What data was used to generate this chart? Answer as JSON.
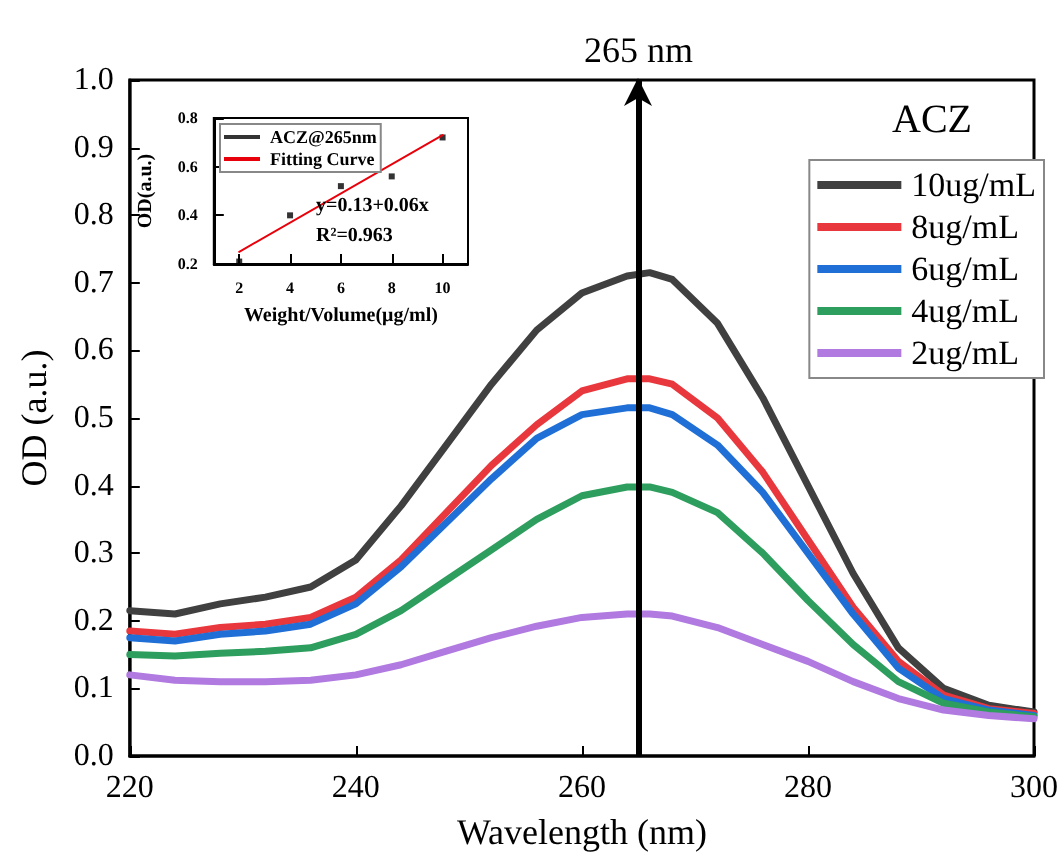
{
  "chart_data": [
    {
      "type": "line",
      "xlabel": "Wavelength (nm)",
      "ylabel": "OD (a.u.)",
      "legend_title": "ACZ",
      "legend": "top right",
      "grid": false,
      "marker": "none",
      "x": [
        220,
        224,
        228,
        232,
        236,
        240,
        244,
        248,
        252,
        256,
        260,
        264,
        266,
        268,
        272,
        276,
        280,
        284,
        288,
        292,
        296,
        300
      ],
      "xlim": [
        220,
        300
      ],
      "xticks": [
        220,
        240,
        260,
        280,
        300
      ],
      "ylim": [
        0,
        1
      ],
      "yticks": [
        {
          "value": 0,
          "label": "0.0"
        },
        0.1,
        0.2,
        0.3,
        0.4,
        0.5,
        0.6,
        0.7,
        0.8,
        0.9,
        {
          "value": 1,
          "label": "1.0"
        }
      ],
      "series": [
        {
          "name": "10ug/mL",
          "color": "#404040",
          "values": [
            0.215,
            0.21,
            0.225,
            0.235,
            0.25,
            0.29,
            0.37,
            0.46,
            0.55,
            0.63,
            0.685,
            0.71,
            0.715,
            0.705,
            0.64,
            0.53,
            0.4,
            0.27,
            0.16,
            0.1,
            0.075,
            0.065
          ]
        },
        {
          "name": "8ug/mL",
          "color": "#e8383d",
          "values": [
            0.185,
            0.18,
            0.19,
            0.195,
            0.205,
            0.235,
            0.29,
            0.36,
            0.43,
            0.49,
            0.54,
            0.558,
            0.558,
            0.55,
            0.5,
            0.42,
            0.32,
            0.22,
            0.14,
            0.09,
            0.07,
            0.063
          ]
        },
        {
          "name": "6ug/mL",
          "color": "#1f6fd6",
          "values": [
            0.175,
            0.17,
            0.18,
            0.185,
            0.195,
            0.225,
            0.28,
            0.345,
            0.41,
            0.47,
            0.505,
            0.515,
            0.515,
            0.505,
            0.46,
            0.39,
            0.3,
            0.21,
            0.13,
            0.085,
            0.068,
            0.06
          ]
        },
        {
          "name": "4ug/mL",
          "color": "#2e9e5e",
          "values": [
            0.15,
            0.148,
            0.152,
            0.155,
            0.16,
            0.18,
            0.215,
            0.26,
            0.305,
            0.35,
            0.385,
            0.398,
            0.398,
            0.39,
            0.36,
            0.3,
            0.23,
            0.165,
            0.11,
            0.078,
            0.065,
            0.058
          ]
        },
        {
          "name": "2ug/mL",
          "color": "#b07ae0",
          "values": [
            0.12,
            0.112,
            0.11,
            0.11,
            0.112,
            0.12,
            0.135,
            0.155,
            0.175,
            0.192,
            0.205,
            0.21,
            0.21,
            0.207,
            0.19,
            0.165,
            0.14,
            0.11,
            0.085,
            0.068,
            0.06,
            0.055
          ]
        }
      ],
      "ref_lines": [
        {
          "axis": "x",
          "value": 265,
          "label": "265 nm",
          "color": "#000000"
        }
      ]
    },
    {
      "type": "scatter",
      "xlabel": "Weight/Volume(μg/ml)",
      "ylabel": "OD(a.u.)",
      "legend": "top left",
      "grid": false,
      "xlim": [
        1,
        11
      ],
      "xticks": [
        2,
        4,
        6,
        8,
        10
      ],
      "ylim": [
        0.2,
        0.8
      ],
      "yticks": [
        0.2,
        0.4,
        0.6,
        0.8
      ],
      "series": [
        {
          "name": "ACZ@265nm",
          "marker": "square",
          "color": "#000000",
          "x": [
            2,
            4,
            6,
            8,
            10
          ],
          "values": [
            0.21,
            0.4,
            0.52,
            0.56,
            0.72
          ]
        },
        {
          "name": "Fitting Curve",
          "type": "line",
          "marker": "none",
          "color": "#e8000b",
          "x": [
            2,
            10
          ],
          "values": [
            0.25,
            0.73
          ]
        }
      ],
      "annotations": [
        "y=0.13+0.06x",
        "R²=0.963"
      ]
    }
  ]
}
